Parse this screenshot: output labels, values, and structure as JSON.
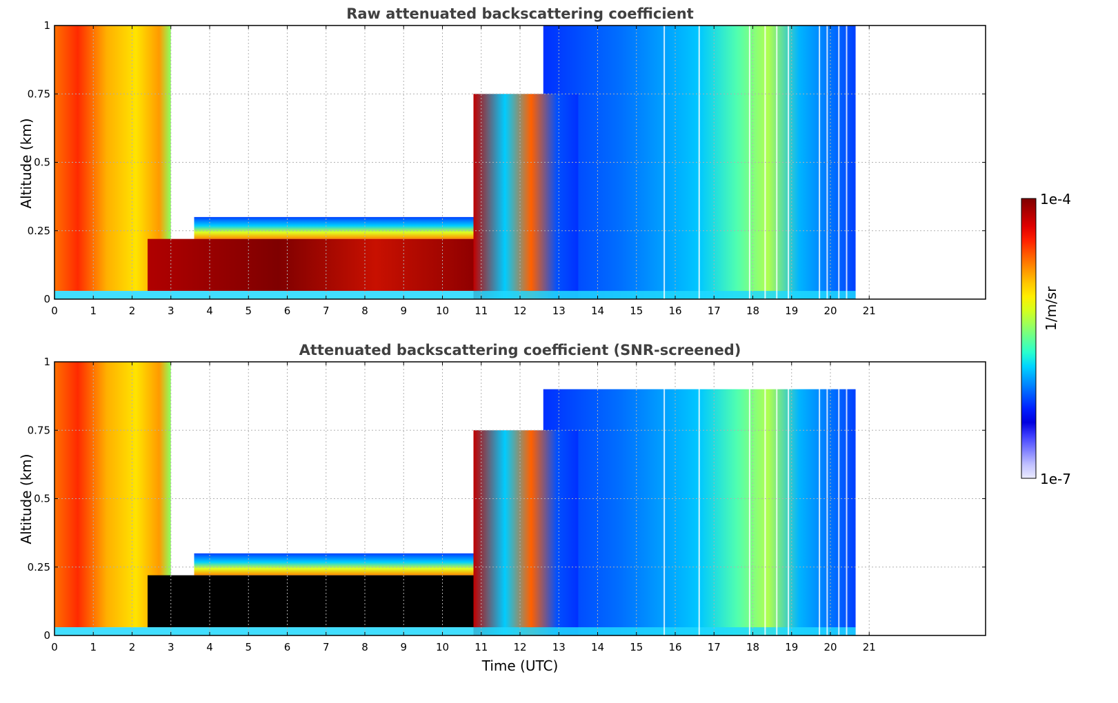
{
  "chart_data": [
    {
      "type": "heatmap",
      "title": "Raw attenuated backscattering coefficient",
      "xlabel": "",
      "ylabel": "Altitude (km)",
      "xlim": [
        0,
        24
      ],
      "ylim": [
        0,
        1
      ],
      "xticks": [
        "0",
        "1",
        "2",
        "3",
        "4",
        "5",
        "6",
        "7",
        "8",
        "9",
        "10",
        "11",
        "12",
        "13",
        "14",
        "15",
        "16",
        "17",
        "18",
        "19",
        "20",
        "21"
      ],
      "yticks": [
        "0",
        "0.25",
        "0.5",
        "0.75",
        "1"
      ],
      "grid": true,
      "data_end_x": 20.65,
      "regions": [
        {
          "x": [
            0,
            3.0
          ],
          "y": [
            0.03,
            1.0
          ],
          "level": "high"
        },
        {
          "x": [
            2.4,
            10.8
          ],
          "y": [
            0.03,
            0.22
          ],
          "level": "very-high"
        },
        {
          "x": [
            3.6,
            10.8
          ],
          "y": [
            0.22,
            0.3
          ],
          "level": "medium"
        },
        {
          "x": [
            10.8,
            13.5
          ],
          "y": [
            0.0,
            0.75
          ],
          "level": "mixed"
        },
        {
          "x": [
            12.6,
            20.65
          ],
          "y": [
            0.0,
            1.0
          ],
          "level": "low-to-medium"
        }
      ]
    },
    {
      "type": "heatmap",
      "title": "Attenuated backscattering coefficient (SNR-screened)",
      "xlabel": "Time (UTC)",
      "ylabel": "Altitude (km)",
      "xlim": [
        0,
        24
      ],
      "ylim": [
        0,
        1
      ],
      "xticks": [
        "0",
        "1",
        "2",
        "3",
        "4",
        "5",
        "6",
        "7",
        "8",
        "9",
        "10",
        "11",
        "12",
        "13",
        "14",
        "15",
        "16",
        "17",
        "18",
        "19",
        "20",
        "21"
      ],
      "yticks": [
        "0",
        "0.25",
        "0.5",
        "0.75",
        "1"
      ],
      "grid": true,
      "data_end_x": 20.65,
      "screened_color": "#000000",
      "regions": [
        {
          "x": [
            0,
            3.0
          ],
          "y": [
            0.03,
            1.0
          ],
          "level": "high"
        },
        {
          "x": [
            2.4,
            10.8
          ],
          "y": [
            0.03,
            0.22
          ],
          "level": "screened"
        },
        {
          "x": [
            3.6,
            10.8
          ],
          "y": [
            0.22,
            0.3
          ],
          "level": "medium"
        },
        {
          "x": [
            10.8,
            13.5
          ],
          "y": [
            0.0,
            0.75
          ],
          "level": "mixed"
        },
        {
          "x": [
            12.6,
            20.65
          ],
          "y": [
            0.0,
            0.9
          ],
          "level": "low-to-medium"
        }
      ]
    }
  ],
  "colorbar": {
    "label": "1/m/sr",
    "max_label": "1e-4",
    "min_label": "1e-7",
    "colors": [
      "#7f0000",
      "#b00000",
      "#e00000",
      "#ff2000",
      "#ff5a00",
      "#ff9000",
      "#ffc400",
      "#ffee00",
      "#d4ff1e",
      "#9cff5a",
      "#62ff94",
      "#28ffce",
      "#00d4ff",
      "#0098ff",
      "#005cff",
      "#0020ff",
      "#0000e0",
      "#4040ff",
      "#8080ff",
      "#c0c0ff",
      "#ebebff"
    ]
  }
}
